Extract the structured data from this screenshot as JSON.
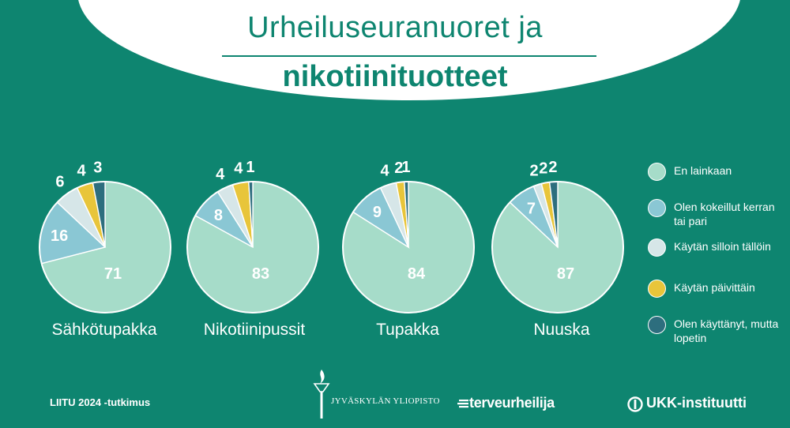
{
  "header": {
    "title_line1": "Urheiluseuranuoret ja",
    "title_line2": "nikotiinituotteet"
  },
  "colors": {
    "background": "#0e8570",
    "header_bg": "#ffffff",
    "title_text": "#0e8570",
    "en_lainkaan": "#a6dcc9",
    "kokeillut": "#8ac7d4",
    "silloin_talloin": "#d6e6e8",
    "paivittain": "#e8c53a",
    "lopetin": "#2d6e7e"
  },
  "legend": [
    {
      "label": "En lainkaan",
      "color": "#a6dcc9"
    },
    {
      "label": "Olen kokeillut kerran tai pari",
      "color": "#8ac7d4"
    },
    {
      "label": "Käytän silloin tällöin",
      "color": "#d6e6e8"
    },
    {
      "label": "Käytän päivittäin",
      "color": "#e8c53a"
    },
    {
      "label": "Olen käyttänyt, mutta lopetin",
      "color": "#2d6e7e"
    }
  ],
  "chart_data": [
    {
      "type": "pie",
      "title": "Sähkötupakka",
      "categories": [
        "En lainkaan",
        "Olen kokeillut kerran tai pari",
        "Käytän silloin tällöin",
        "Käytän päivittäin",
        "Olen käyttänyt, mutta lopetin"
      ],
      "values": [
        71,
        16,
        6,
        4,
        3
      ]
    },
    {
      "type": "pie",
      "title": "Nikotiinipussit",
      "categories": [
        "En lainkaan",
        "Olen kokeillut kerran tai pari",
        "Käytän silloin tällöin",
        "Käytän päivittäin",
        "Olen käyttänyt, mutta lopetin"
      ],
      "values": [
        83,
        8,
        4,
        4,
        1
      ]
    },
    {
      "type": "pie",
      "title": "Tupakka",
      "categories": [
        "En lainkaan",
        "Olen kokeillut kerran tai pari",
        "Käytän silloin tällöin",
        "Käytän päivittäin",
        "Olen käyttänyt, mutta lopetin"
      ],
      "values": [
        84,
        9,
        4,
        2,
        1
      ]
    },
    {
      "type": "pie",
      "title": "Nuuska",
      "categories": [
        "En lainkaan",
        "Olen kokeillut kerran tai pari",
        "Käytän silloin tällöin",
        "Käytän päivittäin",
        "Olen käyttänyt, mutta lopetin"
      ],
      "values": [
        87,
        7,
        2,
        2,
        2
      ]
    }
  ],
  "footer": {
    "note": "LIITU 2024 -tutkimus",
    "logo_jyu": "JYVÄSKYLÄN YLIOPISTO",
    "logo_terveurheilija": "terveurheilija",
    "logo_ukk": "UKK-instituutti"
  },
  "icons": {
    "jyu": "torch-logo-icon",
    "terveurheilija": "speed-lines-icon",
    "ukk": "ukk-circle-icon"
  }
}
